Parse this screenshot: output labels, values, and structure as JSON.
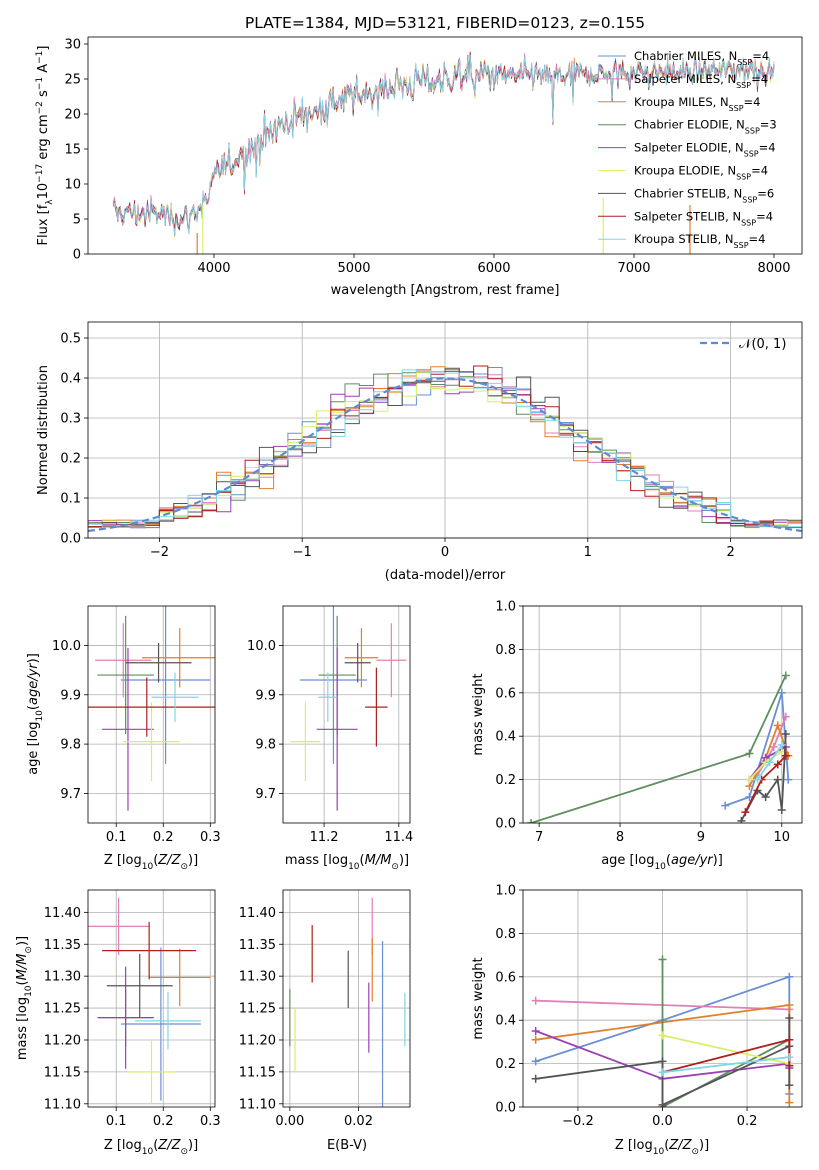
{
  "chart_data": [
    {
      "id": "spectrum",
      "type": "line",
      "title": "PLATE=1384, MJD=53121, FIBERID=0123, z=0.155",
      "xlabel": "wavelength [Angstrom, rest frame]",
      "ylabel": "Flux [fλ10⁻¹⁷ erg cm⁻² s⁻¹ A⁻¹]",
      "xlim": [
        3100,
        8200
      ],
      "ylim": [
        0,
        31
      ],
      "xticks": [
        4000,
        5000,
        6000,
        7000,
        8000
      ],
      "yticks": [
        0,
        5,
        10,
        15,
        20,
        25,
        30
      ],
      "grid": false,
      "legend_position": "top-right",
      "wavelength_range": [
        3280,
        8000
      ],
      "continuum": {
        "x": [
          3280,
          3600,
          3800,
          3950,
          4000,
          4200,
          4400,
          4600,
          4800,
          5000,
          5200,
          5400,
          5600,
          5800,
          6000,
          6200,
          6400,
          6600,
          6800,
          7000,
          7200,
          7400,
          7600,
          7800,
          8000
        ],
        "y": [
          6,
          5.8,
          5,
          7.5,
          11,
          14.5,
          17.5,
          19.5,
          21,
          22.5,
          23.5,
          24.5,
          25,
          25.5,
          25.5,
          25.5,
          25.5,
          25.5,
          25.8,
          26,
          26,
          26,
          26.3,
          26.5,
          26
        ]
      },
      "series": [
        {
          "name": "Chabrier MILES, N_SSP=4",
          "label_main": "Chabrier MILES, N",
          "label_sub": "SSP",
          "label_tail": "=4",
          "color": "#6a8fd6"
        },
        {
          "name": "Salpeter MILES, N_SSP=4",
          "label_main": "Salpeter MILES, N",
          "label_sub": "SSP",
          "label_tail": "=4",
          "color": "#e37fb7"
        },
        {
          "name": "Kroupa MILES, N_SSP=4",
          "label_main": "Kroupa MILES, N",
          "label_sub": "SSP",
          "label_tail": "=4",
          "color": "#e0812a"
        },
        {
          "name": "Chabrier ELODIE, N_SSP=3",
          "label_main": "Chabrier ELODIE, N",
          "label_sub": "SSP",
          "label_tail": "=3",
          "color": "#5f8e5f"
        },
        {
          "name": "Salpeter ELODIE, N_SSP=4",
          "label_main": "Salpeter ELODIE, N",
          "label_sub": "SSP",
          "label_tail": "=4",
          "color": "#9b3fb5"
        },
        {
          "name": "Kroupa ELODIE, N_SSP=4",
          "label_main": "Kroupa ELODIE, N",
          "label_sub": "SSP",
          "label_tail": "=4",
          "color": "#d9ee6a"
        },
        {
          "name": "Chabrier STELIB, N_SSP=6",
          "label_main": "Chabrier STELIB, N",
          "label_sub": "SSP",
          "label_tail": "=6",
          "color": "#555555"
        },
        {
          "name": "Salpeter STELIB, N_SSP=4",
          "label_main": "Salpeter STELIB, N",
          "label_sub": "SSP",
          "label_tail": "=4",
          "color": "#b01e1e"
        },
        {
          "name": "Kroupa STELIB, N_SSP=4",
          "label_main": "Kroupa STELIB, N",
          "label_sub": "SSP",
          "label_tail": "=4",
          "color": "#7fd6e6"
        }
      ]
    },
    {
      "id": "residuals",
      "type": "line",
      "xlabel": "(data-model)/error",
      "ylabel": "Normed distribution",
      "xlim": [
        -2.5,
        2.5
      ],
      "ylim": [
        0,
        0.54
      ],
      "xticks": [
        -2,
        -1,
        0,
        1,
        2
      ],
      "yticks": [
        0.0,
        0.1,
        0.2,
        0.3,
        0.4,
        0.5
      ],
      "grid": true,
      "bin_width": 0.1,
      "reference_curve": {
        "name": "N(0,1)",
        "label": "𝒩(0, 1)",
        "color": "#5b8bd6",
        "style": "dashed"
      },
      "legend_position": "top-right"
    },
    {
      "id": "age_vs_Z",
      "type": "scatter",
      "xlabel": "Z [log₁₀(Z/Z☉)]",
      "ylabel": "age  [log₁₀(age/yr)]",
      "xlim": [
        0.04,
        0.31
      ],
      "ylim": [
        9.64,
        10.08
      ],
      "xticks": [
        0.1,
        0.2,
        0.3
      ],
      "yticks": [
        9.7,
        9.8,
        9.9,
        10.0
      ],
      "grid": true,
      "points": [
        {
          "x": 0.205,
          "y": 9.93,
          "xerr": 0.095,
          "yerr": 0.17
        },
        {
          "x": 0.115,
          "y": 9.97,
          "xerr": 0.06,
          "yerr": 0.075
        },
        {
          "x": 0.235,
          "y": 9.975,
          "xerr": 0.08,
          "yerr": 0.06
        },
        {
          "x": 0.12,
          "y": 9.94,
          "xerr": 0.06,
          "yerr": 0.12
        },
        {
          "x": 0.125,
          "y": 9.83,
          "xerr": 0.055,
          "yerr": 0.165
        },
        {
          "x": 0.175,
          "y": 9.805,
          "xerr": 0.06,
          "yerr": 0.08
        },
        {
          "x": 0.19,
          "y": 9.965,
          "xerr": 0.07,
          "yerr": 0.04
        },
        {
          "x": 0.165,
          "y": 9.875,
          "xerr": 0.145,
          "yerr": 0.06
        },
        {
          "x": 0.225,
          "y": 9.895,
          "xerr": 0.05,
          "yerr": 0.05
        }
      ]
    },
    {
      "id": "age_vs_mass",
      "type": "scatter",
      "xlabel": "mass [log₁₀(M/M☉)]",
      "xlim": [
        11.09,
        11.43
      ],
      "ylim": [
        9.64,
        10.08
      ],
      "xticks": [
        11.2,
        11.4
      ],
      "yticks": [
        9.7,
        9.8,
        9.9,
        10.0
      ],
      "grid": true,
      "points": [
        {
          "x": 11.225,
          "y": 9.93,
          "xerr": 0.09,
          "yerr": 0.17
        },
        {
          "x": 11.38,
          "y": 9.97,
          "xerr": 0.04,
          "yerr": 0.075
        },
        {
          "x": 11.3,
          "y": 9.975,
          "xerr": 0.045,
          "yerr": 0.06
        },
        {
          "x": 11.235,
          "y": 9.94,
          "xerr": 0.05,
          "yerr": 0.12
        },
        {
          "x": 11.235,
          "y": 9.83,
          "xerr": 0.055,
          "yerr": 0.165
        },
        {
          "x": 11.15,
          "y": 9.805,
          "xerr": 0.04,
          "yerr": 0.08
        },
        {
          "x": 11.29,
          "y": 9.965,
          "xerr": 0.035,
          "yerr": 0.04
        },
        {
          "x": 11.34,
          "y": 9.875,
          "xerr": 0.03,
          "yerr": 0.08
        },
        {
          "x": 11.21,
          "y": 9.895,
          "xerr": 0.025,
          "yerr": 0.05
        }
      ]
    },
    {
      "id": "massweight_vs_age",
      "type": "line",
      "xlabel": "age  [log₁₀(age/yr)]",
      "ylabel": "mass weight",
      "xlim": [
        6.8,
        10.25
      ],
      "ylim": [
        0,
        1.0
      ],
      "xticks": [
        7,
        8,
        9,
        10
      ],
      "yticks": [
        0.0,
        0.2,
        0.4,
        0.6,
        0.8,
        1.0
      ],
      "grid": true,
      "series": [
        {
          "x": [
            9.3,
            9.6,
            10.0,
            10.08
          ],
          "y": [
            0.08,
            0.12,
            0.6,
            0.2
          ]
        },
        {
          "x": [
            9.7,
            9.9,
            10.05
          ],
          "y": [
            0.22,
            0.35,
            0.49
          ]
        },
        {
          "x": [
            9.6,
            9.8,
            9.95,
            10.08
          ],
          "y": [
            0.17,
            0.3,
            0.45,
            0.31
          ]
        },
        {
          "x": [
            6.9,
            9.6,
            10.05
          ],
          "y": [
            0.0,
            0.32,
            0.68
          ]
        },
        {
          "x": [
            9.6,
            9.8,
            10.05
          ],
          "y": [
            0.2,
            0.3,
            0.35
          ]
        },
        {
          "x": [
            9.6,
            9.8,
            10.0
          ],
          "y": [
            0.2,
            0.28,
            0.33
          ]
        },
        {
          "x": [
            9.5,
            9.7,
            9.8,
            9.95,
            10.0,
            10.05
          ],
          "y": [
            0.01,
            0.15,
            0.12,
            0.2,
            0.06,
            0.41
          ]
        },
        {
          "x": [
            9.55,
            9.75,
            9.95,
            10.05
          ],
          "y": [
            0.05,
            0.2,
            0.27,
            0.31
          ]
        },
        {
          "x": [
            9.7,
            9.85,
            10.0
          ],
          "y": [
            0.2,
            0.28,
            0.36
          ]
        }
      ]
    },
    {
      "id": "mass_vs_Z",
      "type": "scatter",
      "xlabel": "Z [log₁₀(Z/Z☉)]",
      "ylabel": "mass [log₁₀(M/M☉)]",
      "xlim": [
        0.04,
        0.31
      ],
      "ylim": [
        11.095,
        11.435
      ],
      "xticks": [
        0.1,
        0.2,
        0.3
      ],
      "yticks": [
        11.1,
        11.15,
        11.2,
        11.25,
        11.3,
        11.35,
        11.4
      ],
      "grid": true,
      "points": [
        {
          "x": 0.195,
          "y": 11.225,
          "xerr": 0.085,
          "yerr": 0.12
        },
        {
          "x": 0.105,
          "y": 11.378,
          "xerr": 0.065,
          "yerr": 0.045
        },
        {
          "x": 0.235,
          "y": 11.298,
          "xerr": 0.065,
          "yerr": 0.045
        },
        {
          "x": 0.12,
          "y": 11.235,
          "xerr": 0.055,
          "yerr": 0.045
        },
        {
          "x": 0.12,
          "y": 11.235,
          "xerr": 0.06,
          "yerr": 0.08
        },
        {
          "x": 0.175,
          "y": 11.15,
          "xerr": 0.05,
          "yerr": 0.05
        },
        {
          "x": 0.15,
          "y": 11.285,
          "xerr": 0.07,
          "yerr": 0.05
        },
        {
          "x": 0.17,
          "y": 11.34,
          "xerr": 0.1,
          "yerr": 0.045
        },
        {
          "x": 0.21,
          "y": 11.23,
          "xerr": 0.07,
          "yerr": 0.045
        }
      ]
    },
    {
      "id": "mass_vs_EBV",
      "type": "scatter",
      "xlabel": "E(B-V)",
      "xlim": [
        -0.002,
        0.035
      ],
      "ylim": [
        11.095,
        11.435
      ],
      "xticks": [
        0.0,
        0.02
      ],
      "yticks": [
        11.1,
        11.15,
        11.2,
        11.25,
        11.3,
        11.35,
        11.4
      ],
      "grid": true,
      "points": [
        {
          "x": 0.027,
          "y": 11.225,
          "yerr": 0.13
        },
        {
          "x": 0.024,
          "y": 11.378,
          "yerr": 0.045
        },
        {
          "x": 0.024,
          "y": 11.31,
          "yerr": 0.05
        },
        {
          "x": 0.0,
          "y": 11.235,
          "yerr": 0.045
        },
        {
          "x": 0.023,
          "y": 11.235,
          "yerr": 0.055
        },
        {
          "x": 0.0015,
          "y": 11.2,
          "yerr": 0.05
        },
        {
          "x": 0.017,
          "y": 11.295,
          "yerr": 0.045
        },
        {
          "x": 0.0065,
          "y": 11.335,
          "yerr": 0.045
        },
        {
          "x": 0.0335,
          "y": 11.232,
          "yerr": 0.042
        }
      ]
    },
    {
      "id": "massweight_vs_Z",
      "type": "line",
      "xlabel": "Z [log₁₀(Z/Z☉)]",
      "ylabel": "mass weight",
      "xlim": [
        -0.33,
        0.33
      ],
      "ylim": [
        0,
        1.0
      ],
      "xticks": [
        -0.2,
        0.0,
        0.2
      ],
      "yticks": [
        0.0,
        0.2,
        0.4,
        0.6,
        0.8,
        1.0
      ],
      "grid": true,
      "series": [
        {
          "x": [
            -0.3,
            0.0,
            0.3,
            0.3
          ],
          "y": [
            0.21,
            0.4,
            0.6,
            0.06
          ]
        },
        {
          "x": [
            -0.3,
            0.3,
            0.3
          ],
          "y": [
            0.49,
            0.45,
            0.2
          ]
        },
        {
          "x": [
            -0.3,
            0.3,
            0.3
          ],
          "y": [
            0.31,
            0.47,
            0.02
          ]
        },
        {
          "x": [
            0.0,
            0.0,
            0.3
          ],
          "y": [
            0.68,
            0.0,
            0.31
          ]
        },
        {
          "x": [
            -0.3,
            0.0,
            0.3,
            0.3
          ],
          "y": [
            0.35,
            0.13,
            0.2,
            0.18
          ]
        },
        {
          "x": [
            0.0,
            0.3
          ],
          "y": [
            0.33,
            0.2
          ]
        },
        {
          "x": [
            -0.3,
            0.0,
            0.0,
            0.3,
            0.3,
            0.3
          ],
          "y": [
            0.13,
            0.21,
            0.01,
            0.28,
            0.41,
            0.1
          ]
        },
        {
          "x": [
            0.0,
            0.3,
            0.3
          ],
          "y": [
            0.16,
            0.31,
            0.19
          ]
        },
        {
          "x": [
            0.0,
            0.3
          ],
          "y": [
            0.16,
            0.23
          ]
        }
      ]
    }
  ]
}
